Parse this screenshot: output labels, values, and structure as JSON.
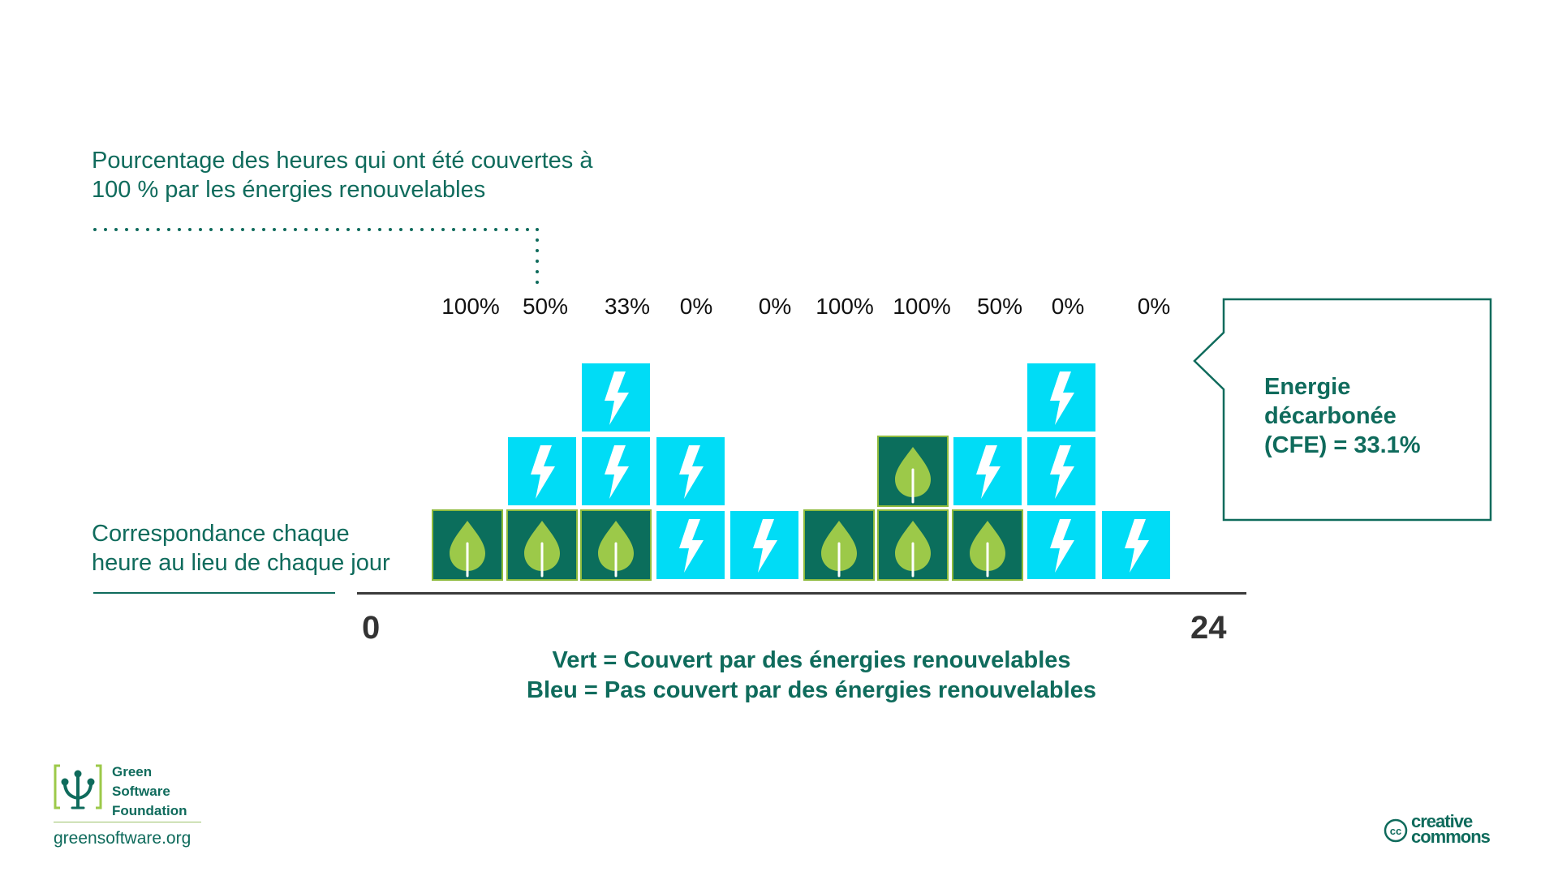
{
  "top_note": {
    "line1": "Pourcentage des heures qui ont été couvertes à",
    "line2": "100 % par les énergies renouvelables"
  },
  "percentages": [
    "100%",
    "50%",
    "33%",
    "0%",
    "0%",
    "100%",
    "100%",
    "50%",
    "0%",
    "0%"
  ],
  "blocks": {
    "columns": [
      {
        "hour_index": 0,
        "stack": [
          "green"
        ]
      },
      {
        "hour_index": 1,
        "stack": [
          "green",
          "blue"
        ]
      },
      {
        "hour_index": 2,
        "stack": [
          "green",
          "blue",
          "blue"
        ]
      },
      {
        "hour_index": 3,
        "stack": [
          "blue",
          "blue"
        ]
      },
      {
        "hour_index": 4,
        "stack": [
          "blue"
        ]
      },
      {
        "hour_index": 5,
        "stack": [
          "green"
        ]
      },
      {
        "hour_index": 6,
        "stack": [
          "green",
          "green"
        ]
      },
      {
        "hour_index": 7,
        "stack": [
          "green",
          "blue"
        ]
      },
      {
        "hour_index": 8,
        "stack": [
          "blue",
          "blue",
          "blue"
        ]
      },
      {
        "hour_index": 9,
        "stack": [
          "blue"
        ]
      }
    ],
    "colors": {
      "blue": "#00dcf6",
      "green": "#0b6e5c",
      "leaf": "#9cc949",
      "border_green": "#8fbb3d"
    },
    "icons": {
      "green": "leaf-icon",
      "blue": "lightning-icon"
    }
  },
  "side_note": {
    "line1": "Correspondance chaque",
    "line2": "heure au lieu de chaque jour"
  },
  "axis": {
    "start": "0",
    "end": "24"
  },
  "legend": {
    "line1": "Vert = Couvert par des énergies renouvelables",
    "line2": "Bleu = Pas couvert par des énergies renouvelables"
  },
  "callout": {
    "line1": "Energie",
    "line2": "décarbonée",
    "line3": "(CFE) = 33.1%"
  },
  "footer": {
    "org_line1": "Green",
    "org_line2": "Software",
    "org_line3": "Foundation",
    "url": "greensoftware.org",
    "cc_line1": "creative",
    "cc_line2": "commons",
    "cc_badge": "cc"
  },
  "brand_color": "#0f6b5c"
}
